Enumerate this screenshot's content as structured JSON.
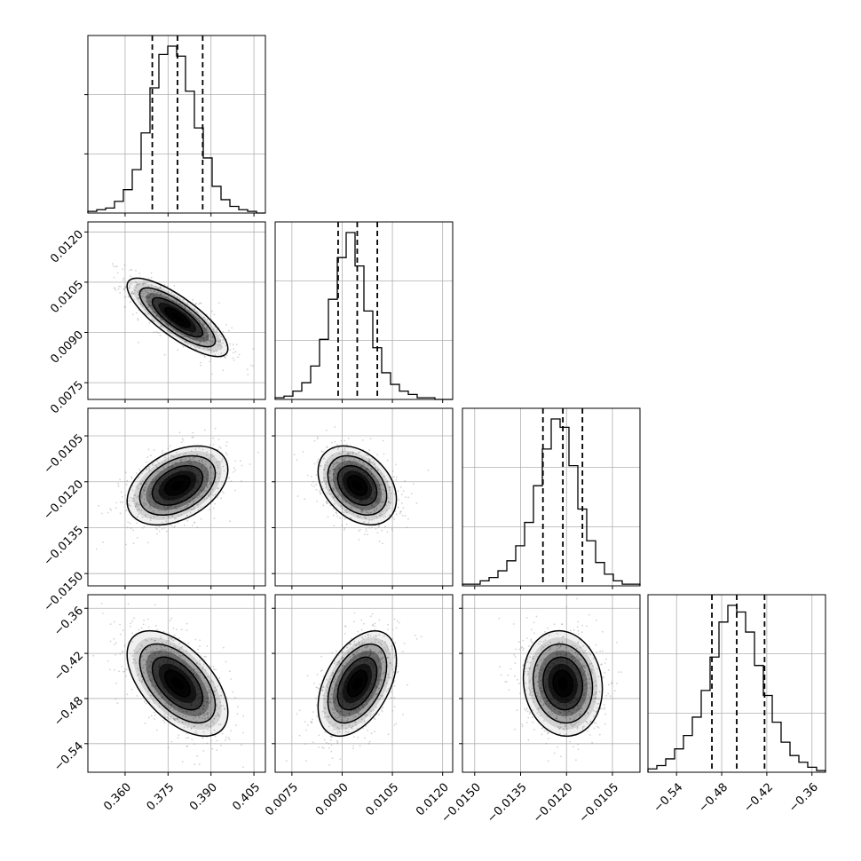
{
  "chart_data": {
    "type": "corner",
    "parameters": [
      {
        "range": [
          0.347,
          0.409
        ],
        "ticks": [
          0.36,
          0.375,
          0.39,
          0.405
        ],
        "tick_labels": [
          "0.360",
          "0.375",
          "0.390",
          "0.405"
        ],
        "hist_counts": [
          1,
          2,
          3,
          7,
          14,
          26,
          48,
          75,
          95,
          100,
          94,
          73,
          51,
          33,
          16,
          8,
          4,
          2,
          1,
          0
        ],
        "quantiles": [
          0.3695,
          0.3783,
          0.3871
        ]
      },
      {
        "range": [
          0.007,
          0.0123
        ],
        "ticks": [
          0.0075,
          0.009,
          0.0105,
          0.012
        ],
        "tick_labels": [
          "0.0075",
          "0.0090",
          "0.0105",
          "0.0120"
        ],
        "hist_counts": [
          1,
          2,
          5,
          10,
          20,
          36,
          60,
          85,
          100,
          80,
          53,
          31,
          16,
          9,
          5,
          3,
          1,
          1,
          0,
          0
        ],
        "quantiles": [
          0.00888,
          0.00945,
          0.01005
        ]
      },
      {
        "range": [
          -0.0154,
          -0.0096
        ],
        "ticks": [
          -0.015,
          -0.0135,
          -0.012,
          -0.0105
        ],
        "tick_labels": [
          "−0.0150",
          "−0.0135",
          "−0.0120",
          "−0.0105"
        ],
        "hist_counts": [
          1,
          1,
          3,
          5,
          9,
          15,
          24,
          38,
          60,
          82,
          100,
          95,
          72,
          46,
          27,
          14,
          7,
          3,
          1,
          1
        ],
        "quantiles": [
          -0.01277,
          -0.01212,
          -0.01148
        ]
      },
      {
        "range": [
          -0.578,
          -0.342
        ],
        "ticks": [
          -0.54,
          -0.48,
          -0.42,
          -0.36
        ],
        "tick_labels": [
          "−0.54",
          "−0.48",
          "−0.42",
          "−0.36"
        ],
        "hist_counts": [
          2,
          4,
          8,
          14,
          22,
          33,
          49,
          69,
          90,
          100,
          96,
          84,
          64,
          46,
          30,
          18,
          10,
          6,
          3,
          1
        ],
        "quantiles": [
          -0.493,
          -0.46,
          -0.423
        ]
      }
    ],
    "correlations": {
      "1-0": -0.8,
      "2-0": 0.4,
      "2-1": -0.35,
      "3-0": -0.55,
      "3-1": 0.45,
      "3-2": -0.1
    },
    "levels": [
      "0.5σ",
      "1σ",
      "1.5σ",
      "2σ"
    ],
    "grid": true,
    "colors": {
      "line": "#000000",
      "grid": "#b0b0b0",
      "points": "#808080",
      "density": "#000000"
    }
  }
}
